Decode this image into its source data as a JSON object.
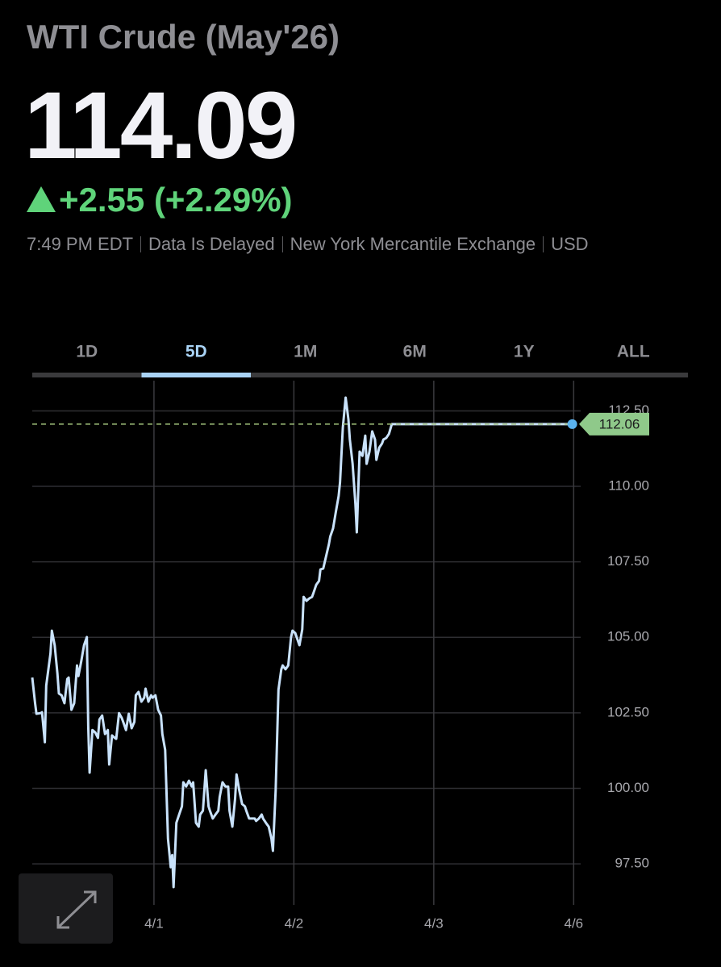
{
  "header": {
    "title": "WTI Crude (May'26)",
    "price": "114.09",
    "change": "+2.55 (+2.29%)",
    "info": [
      "7:49 PM EDT",
      "Data Is Delayed",
      "New York Mercantile Exchange",
      "USD"
    ]
  },
  "tabs": {
    "items": [
      "1D",
      "5D",
      "1M",
      "6M",
      "1Y",
      "ALL"
    ],
    "selected": 1
  },
  "chart_data": {
    "type": "line",
    "color": "#c9e2fb",
    "x": [
      0.13,
      0.15,
      0.16,
      0.19,
      0.2,
      0.22,
      0.23,
      0.26,
      0.27,
      0.29,
      0.31,
      0.32,
      0.34,
      0.36,
      0.38,
      0.39,
      0.41,
      0.43,
      0.45,
      0.46,
      0.48,
      0.5,
      0.52,
      0.53,
      0.54,
      0.56,
      0.58,
      0.6,
      0.61,
      0.63,
      0.65,
      0.67,
      0.68,
      0.7,
      0.72,
      0.73,
      0.75,
      0.77,
      0.79,
      0.8,
      0.82,
      0.84,
      0.86,
      0.87,
      0.89,
      0.91,
      0.93,
      0.94,
      0.96,
      0.98,
      0.99,
      1.01,
      1.03,
      1.05,
      1.06,
      1.08,
      1.1,
      1.12,
      1.13,
      1.14,
      1.16,
      1.18,
      1.2,
      1.21,
      1.23,
      1.25,
      1.27,
      1.28,
      1.3,
      1.32,
      1.33,
      1.35,
      1.37,
      1.39,
      1.4,
      1.42,
      1.44,
      1.46,
      1.47,
      1.49,
      1.51,
      1.53,
      1.54,
      1.56,
      1.58,
      1.59,
      1.61,
      1.63,
      1.65,
      1.66,
      1.68,
      1.7,
      1.72,
      1.73,
      1.75,
      1.77,
      1.78,
      1.8,
      1.82,
      1.84,
      1.85,
      1.87,
      1.89,
      1.91,
      1.92,
      1.94,
      1.96,
      1.98,
      1.99,
      2.01,
      2.03,
      2.04,
      2.06,
      2.07,
      2.09,
      2.11,
      2.13,
      2.14,
      2.16,
      2.18,
      2.19,
      2.21,
      2.23,
      2.25,
      2.26,
      2.28,
      2.3,
      2.32,
      2.33,
      2.35,
      2.37,
      2.39,
      2.4,
      2.42,
      2.44,
      2.45,
      2.47,
      2.49,
      2.51,
      2.52,
      2.54,
      2.56,
      2.58,
      2.59,
      2.61,
      2.63,
      2.64,
      2.66,
      2.68,
      2.7,
      2.78,
      3.36,
      3.99
    ],
    "values": [
      103.67,
      102.82,
      102.47,
      102.49,
      102.52,
      101.53,
      103.4,
      104.47,
      105.22,
      104.74,
      103.8,
      103.14,
      103.08,
      102.82,
      103.62,
      103.67,
      102.6,
      102.82,
      104.07,
      103.72,
      104.2,
      104.74,
      105.01,
      102.07,
      100.52,
      101.93,
      101.85,
      101.67,
      102.28,
      102.41,
      101.8,
      101.93,
      100.79,
      101.75,
      101.67,
      101.64,
      102.49,
      102.33,
      102.07,
      101.93,
      102.47,
      101.99,
      102.2,
      103.08,
      103.19,
      102.87,
      103.0,
      103.3,
      102.87,
      103.08,
      103.0,
      103.08,
      102.6,
      102.41,
      101.8,
      101.27,
      98.33,
      97.39,
      97.79,
      96.73,
      98.86,
      99.13,
      99.4,
      100.2,
      100.06,
      100.25,
      100.06,
      100.2,
      98.86,
      98.73,
      99.13,
      99.26,
      100.6,
      99.4,
      99.26,
      99.0,
      99.13,
      99.26,
      99.72,
      100.2,
      100.06,
      100.06,
      99.26,
      98.73,
      99.66,
      100.46,
      99.93,
      99.48,
      99.4,
      99.26,
      99.0,
      99.0,
      99.0,
      98.92,
      99.0,
      99.13,
      99.0,
      98.86,
      98.73,
      98.33,
      97.93,
      99.93,
      103.27,
      103.94,
      104.07,
      103.94,
      104.07,
      105.01,
      105.22,
      105.14,
      104.87,
      104.74,
      105.27,
      106.34,
      106.21,
      106.29,
      106.34,
      106.47,
      106.74,
      106.87,
      107.25,
      107.28,
      107.68,
      108.08,
      108.34,
      108.61,
      109.15,
      109.68,
      110.13,
      111.95,
      112.94,
      112.22,
      111.55,
      110.75,
      109.41,
      108.48,
      111.15,
      111.01,
      111.68,
      110.75,
      111.15,
      111.82,
      111.55,
      110.88,
      111.28,
      111.42,
      111.55,
      111.6,
      111.74,
      112.06,
      112.06,
      112.06,
      112.06
    ],
    "xlim": [
      0.13,
      4.05
    ],
    "ylim": [
      96.14,
      113.5
    ],
    "xticks": [
      {
        "value": 1,
        "label": "4/1"
      },
      {
        "value": 2,
        "label": "4/2"
      },
      {
        "value": 3,
        "label": "4/3"
      },
      {
        "value": 4,
        "label": "4/6"
      }
    ],
    "yticks": [
      {
        "value": 97.5,
        "label": "97.50"
      },
      {
        "value": 100,
        "label": "100.00"
      },
      {
        "value": 102.5,
        "label": "102.50"
      },
      {
        "value": 105,
        "label": "105.00"
      },
      {
        "value": 107.5,
        "label": "107.50"
      },
      {
        "value": 110,
        "label": "110.00"
      },
      {
        "value": 112.5,
        "label": "112.50"
      }
    ],
    "grid": true
  }
}
